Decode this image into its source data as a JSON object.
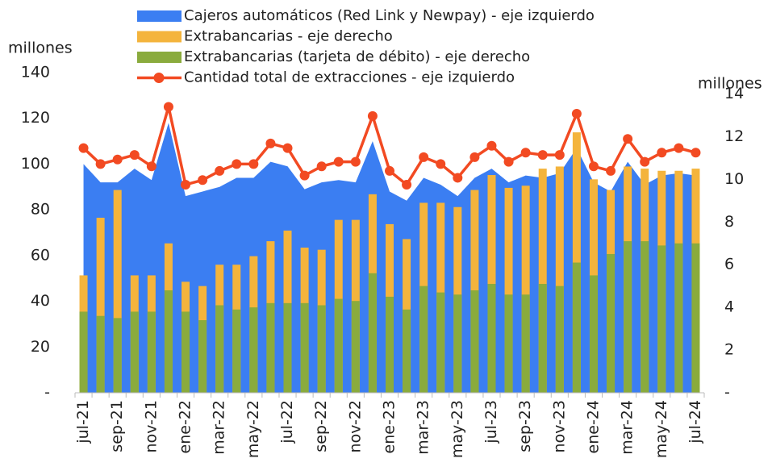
{
  "chart_data": {
    "type": "combo",
    "y_label": "millones",
    "y2_label": "millones",
    "categories": [
      "jul-21",
      null,
      "sep-21",
      null,
      "nov-21",
      null,
      "ene-22",
      null,
      "mar-22",
      null,
      "may-22",
      null,
      "jul-22",
      null,
      "sep-22",
      null,
      "nov-22",
      null,
      "ene-23",
      null,
      "mar-23",
      null,
      "may-23",
      null,
      "jul-23",
      null,
      "sep-23",
      null,
      "nov-23",
      null,
      "ene-24",
      null,
      "mar-24",
      null,
      "may-24",
      null,
      "jul-24"
    ],
    "ylim": [
      0,
      140
    ],
    "yticks": [
      {
        "value": 0,
        "label": "-"
      },
      20,
      40,
      60,
      80,
      100,
      120,
      140
    ],
    "y2lim": [
      0,
      15
    ],
    "y2ticks": [
      {
        "value": 0,
        "label": "-"
      },
      2,
      4,
      6,
      8,
      10,
      12,
      14
    ],
    "series": [
      {
        "name": "Cajeros automáticos (Red Link y Newpay) - eje izquierdo",
        "type": "area",
        "color": "#3b7ef2",
        "values": [
          100,
          92,
          92,
          98,
          93,
          118,
          86,
          88,
          90,
          94,
          94,
          101,
          99,
          89,
          92,
          93,
          92,
          110,
          88,
          84,
          94,
          91,
          86,
          94,
          98,
          92,
          95,
          94,
          96,
          107,
          92,
          88,
          101,
          91,
          95,
          96,
          95
        ]
      },
      {
        "name": "Extrabancarias - eje derecho",
        "type": "bar",
        "axis": "y2",
        "color": "#f4b43c",
        "values": [
          5.5,
          8.2,
          9.5,
          5.5,
          5.5,
          7.0,
          5.2,
          5.0,
          6.0,
          6.0,
          6.4,
          7.1,
          7.6,
          6.8,
          6.7,
          8.1,
          8.1,
          9.3,
          7.9,
          7.2,
          8.9,
          8.9,
          8.7,
          9.5,
          10.2,
          9.6,
          9.7,
          10.5,
          10.6,
          12.2,
          10.0,
          9.5,
          10.6,
          10.5,
          10.4,
          10.4,
          10.5
        ]
      },
      {
        "name": "Extrabancarias (tarjeta de débito) - eje derecho",
        "type": "bar",
        "axis": "y2",
        "color": "#8aab3d",
        "values": [
          3.8,
          3.6,
          3.5,
          3.8,
          3.8,
          4.8,
          3.8,
          3.4,
          4.1,
          3.9,
          4.0,
          4.2,
          4.2,
          4.2,
          4.1,
          4.4,
          4.3,
          5.6,
          4.5,
          3.9,
          5.0,
          4.7,
          4.6,
          4.8,
          5.1,
          4.6,
          4.6,
          5.1,
          5.0,
          6.1,
          5.5,
          6.5,
          7.1,
          7.1,
          6.9,
          7.0,
          7.0
        ]
      },
      {
        "name": "Cantidad total de extracciones - eje izquierdo",
        "type": "line",
        "color": "#f24a22",
        "values": [
          107,
          100,
          102,
          104,
          99,
          125,
          91,
          93,
          97,
          100,
          100,
          109,
          107,
          95,
          99,
          101,
          101,
          121,
          97,
          91,
          103,
          100,
          94,
          103,
          108,
          101,
          105,
          104,
          104,
          122,
          99,
          97,
          111,
          101,
          105,
          107,
          105
        ]
      }
    ]
  }
}
